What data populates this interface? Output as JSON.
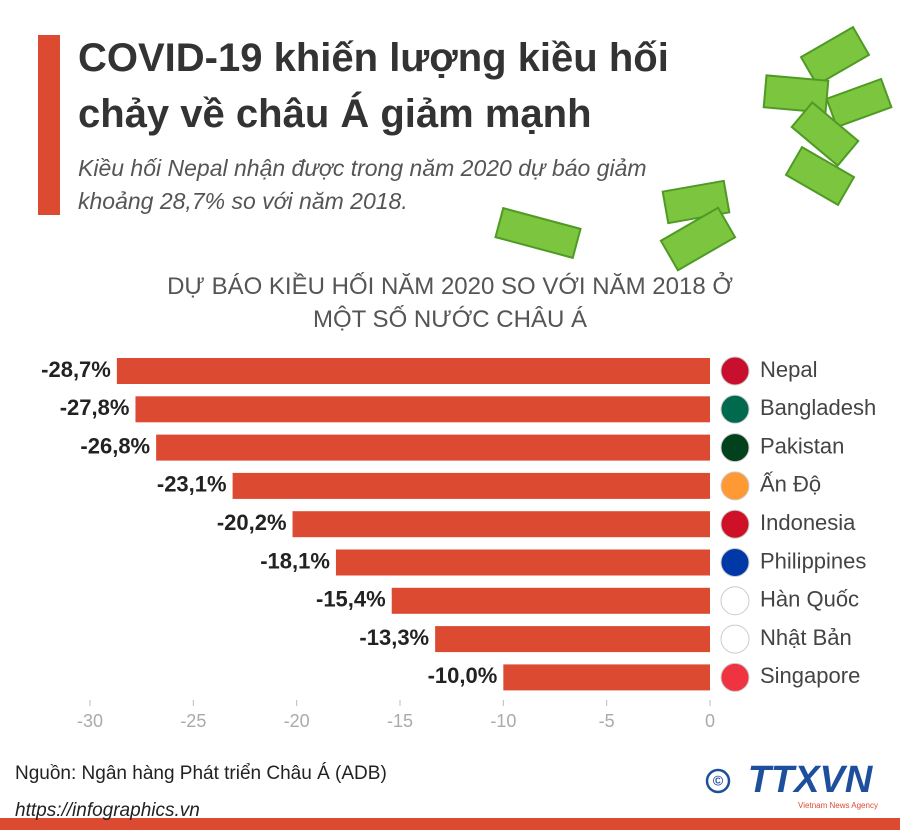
{
  "header": {
    "title": "COVID-19 khiến lượng kiều hối chảy về châu Á giảm mạnh",
    "subtitle": "Kiều hối Nepal nhận được trong năm 2020 dự báo giảm khoảng 28,7% so với năm 2018."
  },
  "chart_data": {
    "type": "bar",
    "orientation": "horizontal",
    "title": "DỰ BÁO KIỀU HỐI NĂM 2020 SO VỚI NĂM 2018 Ở MỘT SỐ NƯỚC CHÂU Á",
    "categories": [
      "Nepal",
      "Bangladesh",
      "Pakistan",
      "Ấn Độ",
      "Indonesia",
      "Philippines",
      "Hàn Quốc",
      "Nhật Bản",
      "Singapore"
    ],
    "values": [
      -28.7,
      -27.8,
      -26.8,
      -23.1,
      -20.2,
      -18.1,
      -15.4,
      -13.3,
      -10.0
    ],
    "value_labels": [
      "-28,7%",
      "-27,8%",
      "-26,8%",
      "-23,1%",
      "-20,2%",
      "-18,1%",
      "-15,4%",
      "-13,3%",
      "-10,0%"
    ],
    "color": "#dc4a32",
    "xlim": [
      -30,
      0
    ],
    "xticks": [
      -30,
      -25,
      -20,
      -15,
      -10,
      -5,
      0
    ],
    "grid": false
  },
  "footer": {
    "source": "Nguồn: Ngân hàng Phát triển Châu Á (ADB)",
    "url": "https://infographics.vn",
    "copyright": "©",
    "logo": "TTXVN",
    "logo_sub": "Vietnam News Agency"
  }
}
